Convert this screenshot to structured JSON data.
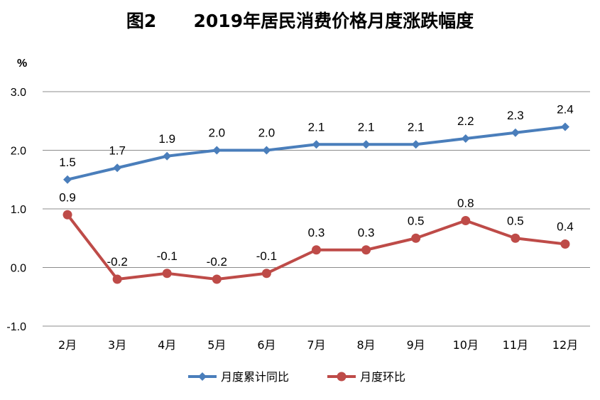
{
  "chart_data": {
    "type": "line",
    "title": "图2      2019年居民消费价格月度涨跌幅度",
    "ylabel": "%",
    "ylim": [
      -1.0,
      3.0
    ],
    "yticks": [
      "3.0",
      "2.0",
      "1.0",
      "0.0",
      "-1.0"
    ],
    "categories": [
      "2月",
      "3月",
      "4月",
      "5月",
      "6月",
      "7月",
      "8月",
      "9月",
      "10月",
      "11月",
      "12月"
    ],
    "grid": true,
    "legend_position": "bottom",
    "series": [
      {
        "name": "月度累计同比",
        "color": "#4a7ebb",
        "marker": "diamond",
        "values": [
          1.5,
          1.7,
          1.9,
          2.0,
          2.0,
          2.1,
          2.1,
          2.1,
          2.2,
          2.3,
          2.4
        ],
        "labels": [
          "1.5",
          "1.7",
          "1.9",
          "2.0",
          "2.0",
          "2.1",
          "2.1",
          "2.1",
          "2.2",
          "2.3",
          "2.4"
        ]
      },
      {
        "name": "月度环比",
        "color": "#be4b48",
        "marker": "circle",
        "values": [
          0.9,
          -0.2,
          -0.1,
          -0.2,
          -0.1,
          0.3,
          0.3,
          0.5,
          0.8,
          0.5,
          0.4
        ],
        "labels": [
          "0.9",
          "-0.2",
          "-0.1",
          "-0.2",
          "-0.1",
          "0.3",
          "0.3",
          "0.5",
          "0.8",
          "0.5",
          "0.4"
        ]
      }
    ]
  }
}
